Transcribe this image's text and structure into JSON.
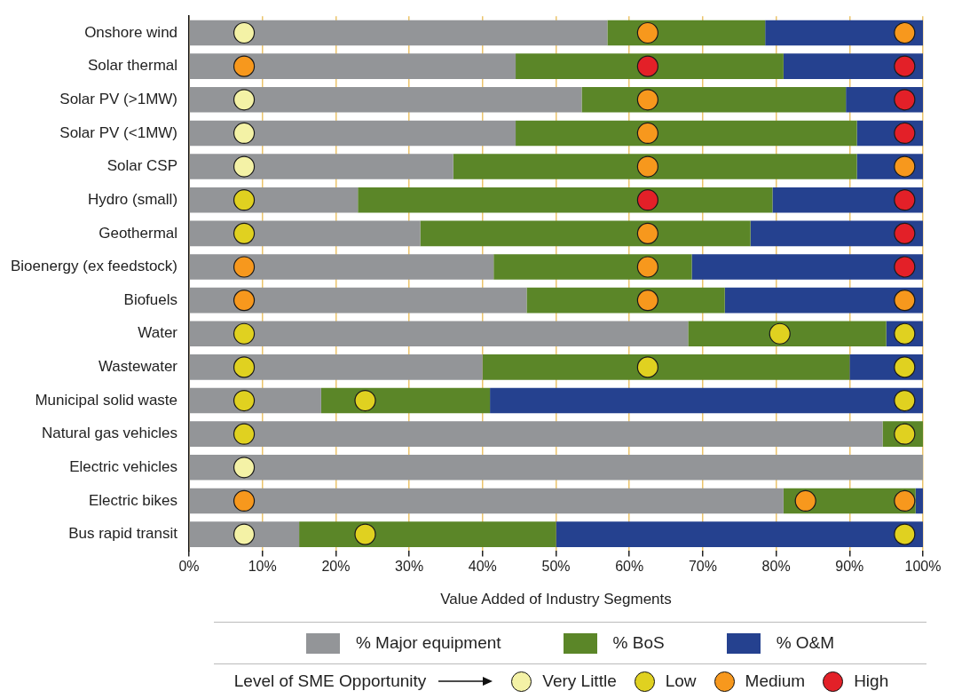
{
  "chart_data": {
    "type": "bar",
    "orientation": "horizontal",
    "stacked": true,
    "xlabel": "Value Added of Industry Segments",
    "legend": "bottom",
    "legend_title": "Level of SME Opportunity",
    "grid": "x",
    "marker": "circle",
    "categories": [
      "Onshore wind",
      "Solar thermal",
      "Solar PV (>1MW)",
      "Solar PV (<1MW)",
      "Solar CSP",
      "Hydro (small)",
      "Geothermal",
      "Bioenergy (ex feedstock)",
      "Biofuels",
      "Water",
      "Wastewater",
      "Municipal solid waste",
      "Natural gas vehicles",
      "Electric vehicles",
      "Electric bikes",
      "Bus rapid transit"
    ],
    "xlim": [
      0,
      100
    ],
    "xticks": [
      {
        "value": 0,
        "label": "0%"
      },
      {
        "value": 10,
        "label": "10%"
      },
      {
        "value": 20,
        "label": "20%"
      },
      {
        "value": 30,
        "label": "30%"
      },
      {
        "value": 40,
        "label": "40%"
      },
      {
        "value": 50,
        "label": "50%"
      },
      {
        "value": 60,
        "label": "60%"
      },
      {
        "value": 70,
        "label": "70%"
      },
      {
        "value": 80,
        "label": "80%"
      },
      {
        "value": 90,
        "label": "90%"
      },
      {
        "value": 100,
        "label": "100%"
      }
    ],
    "series": [
      {
        "name": "% Major equipment",
        "color": "#939598",
        "values": [
          57,
          44.5,
          53.5,
          44.5,
          36,
          23,
          31.5,
          41.5,
          46,
          68,
          40,
          18,
          94.5,
          100,
          81,
          15
        ]
      },
      {
        "name": "% BoS",
        "color": "#5b8628",
        "values": [
          21.5,
          36.5,
          36,
          46.5,
          55,
          56.5,
          45,
          27,
          27,
          27,
          50,
          23,
          5.5,
          0,
          18,
          35
        ]
      },
      {
        "name": "% O&M",
        "color": "#25418f",
        "values": [
          21.5,
          19,
          10.5,
          9,
          9,
          20.5,
          23.5,
          31.5,
          27,
          5,
          10,
          59,
          0,
          0,
          1,
          50
        ]
      },
      {
        "type": "scatter",
        "name": "Very Little",
        "color": "#f4f2a6",
        "values": [
          7.5,
          null,
          7.5,
          7.5,
          7.5,
          null,
          null,
          null,
          null,
          null,
          null,
          null,
          null,
          7.5,
          null,
          7.5
        ]
      },
      {
        "type": "scatter",
        "name": "Low",
        "color": "#e0d120",
        "values": [
          null,
          null,
          null,
          null,
          null,
          7.5,
          7.5,
          null,
          null,
          7.5,
          7.5,
          7.5,
          7.5,
          null,
          null,
          null
        ]
      },
      {
        "type": "scatter",
        "color": "#e0d120",
        "values": [
          null,
          null,
          null,
          null,
          null,
          null,
          null,
          null,
          null,
          80.5,
          62.5,
          24,
          null,
          null,
          null,
          24
        ]
      },
      {
        "type": "scatter",
        "color": "#e0d120",
        "values": [
          null,
          null,
          null,
          null,
          null,
          null,
          null,
          null,
          null,
          97.5,
          97.5,
          97.5,
          97.5,
          null,
          null,
          97.5
        ]
      },
      {
        "type": "scatter",
        "name": "Medium",
        "color": "#f7981d",
        "values": [
          null,
          7.5,
          null,
          null,
          null,
          null,
          null,
          7.5,
          7.5,
          null,
          null,
          null,
          null,
          null,
          7.5,
          null
        ]
      },
      {
        "type": "scatter",
        "color": "#f7981d",
        "values": [
          62.5,
          null,
          62.5,
          62.5,
          62.5,
          null,
          62.5,
          62.5,
          62.5,
          null,
          null,
          null,
          null,
          null,
          84,
          null
        ]
      },
      {
        "type": "scatter",
        "color": "#f7981d",
        "values": [
          97.5,
          null,
          null,
          null,
          97.5,
          null,
          null,
          null,
          97.5,
          null,
          null,
          null,
          null,
          null,
          97.5,
          null
        ]
      },
      {
        "type": "scatter",
        "name": "High",
        "color": "#e32028",
        "values": [
          null,
          62.5,
          null,
          null,
          null,
          62.5,
          null,
          null,
          null,
          null,
          null,
          null,
          null,
          null,
          null,
          null
        ]
      },
      {
        "type": "scatter",
        "color": "#e32028",
        "values": [
          null,
          97.5,
          97.5,
          97.5,
          null,
          97.5,
          97.5,
          97.5,
          null,
          null,
          null,
          null,
          null,
          null,
          null,
          null
        ]
      }
    ]
  }
}
